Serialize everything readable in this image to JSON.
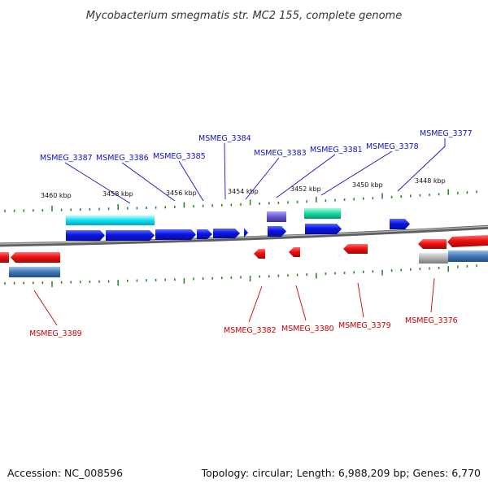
{
  "title": "Mycobacterium smegmatis str. MC2 155, complete genome",
  "footer": {
    "accession": "Accession: NC_008596",
    "summary": "Topology: circular; Length: 6,988,209 bp; Genes: 6,770"
  },
  "colors": {
    "forward_label": "#1010c8",
    "reverse_label": "#cc0000",
    "forward_gene": "#0a14e6",
    "reverse_gene": "#ee1111",
    "tick": "#2a8a2a",
    "backbone": "#8a8a8a"
  },
  "kbp_labels": [
    "3460 kbp",
    "3458 kbp",
    "3456 kbp",
    "3454 kbp",
    "3452 kbp",
    "3450 kbp",
    "3448 kbp"
  ],
  "forward_genes": [
    {
      "label": "MSMEG_3387"
    },
    {
      "label": "MSMEG_3386"
    },
    {
      "label": "MSMEG_3385"
    },
    {
      "label": "MSMEG_3384"
    },
    {
      "label": "MSMEG_3383"
    },
    {
      "label": "MSMEG_3381"
    },
    {
      "label": "MSMEG_3378"
    },
    {
      "label": "MSMEG_3377"
    }
  ],
  "reverse_genes": [
    {
      "label": "MSMEG_3389"
    },
    {
      "label": "MSMEG_3382"
    },
    {
      "label": "MSMEG_3380"
    },
    {
      "label": "MSMEG_3379"
    },
    {
      "label": "MSMEG_3376"
    }
  ]
}
